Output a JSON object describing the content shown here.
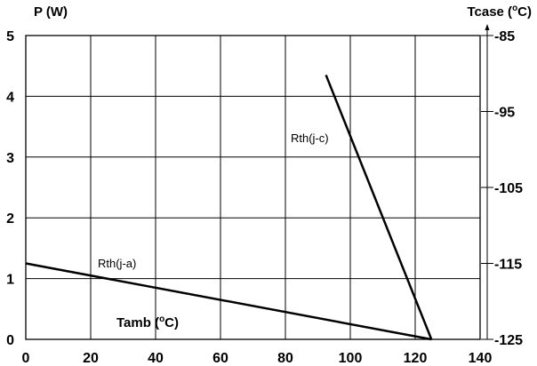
{
  "chart_data": {
    "type": "line",
    "title": "",
    "xlabel": "Tamb (°C)",
    "ylabel": "P (W)",
    "y2label": "Tcase (°C)",
    "xlim": [
      0,
      140
    ],
    "ylim": [
      0,
      5
    ],
    "y2lim": [
      -125,
      -85
    ],
    "xticks": [
      "0",
      "20",
      "40",
      "60",
      "80",
      "100",
      "120",
      "140"
    ],
    "yticks": [
      "0",
      "1",
      "2",
      "3",
      "4",
      "5"
    ],
    "y2ticks": [
      "-125",
      "-115",
      "-105",
      "-95",
      "-85"
    ],
    "grid": true,
    "series": [
      {
        "name": "Rth(j-a)",
        "x": [
          0,
          125
        ],
        "y": [
          1.25,
          0
        ]
      },
      {
        "name": "Rth(j-c)",
        "x": [
          92.5,
          125
        ],
        "y": [
          4.35,
          0
        ]
      }
    ]
  }
}
